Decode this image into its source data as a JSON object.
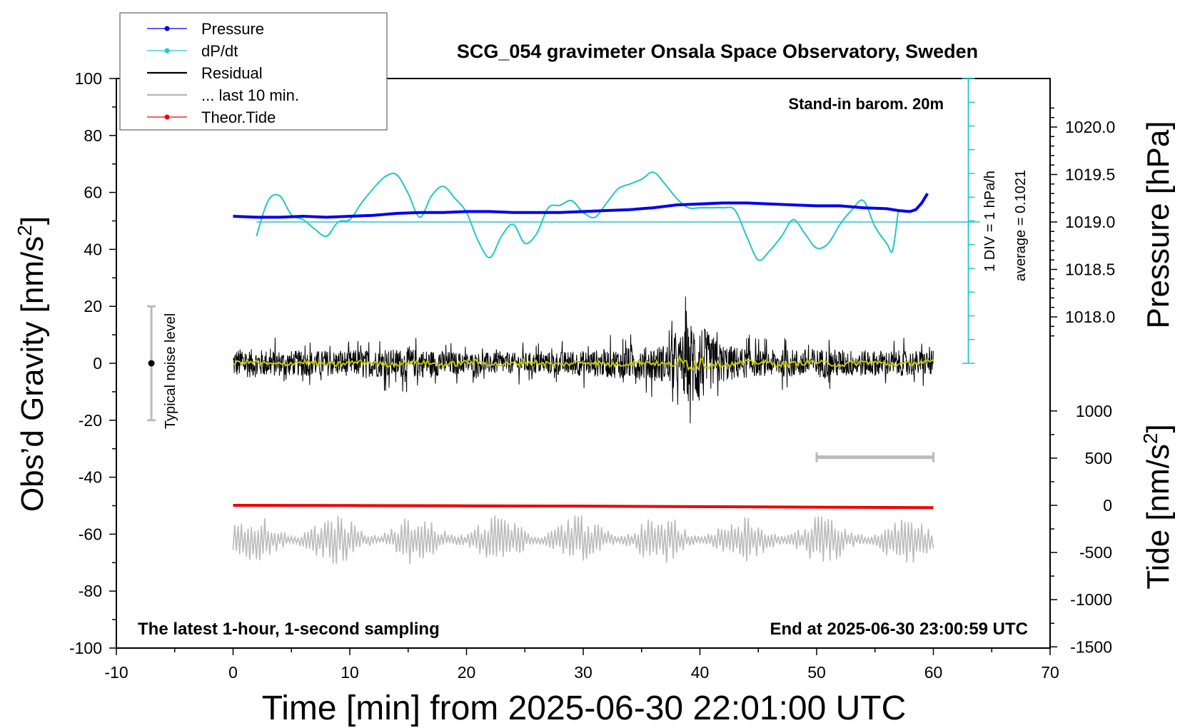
{
  "chart_data": {
    "type": "line",
    "title": "SCG_054 gravimeter Onsala Space Observatory, Sweden",
    "xlabel": "Time [min] from 2025-06-30 22:01:00 UTC",
    "ylabel_left_text": "Obs’d Gravity [nm/s",
    "ylabel_left_sup": "2",
    "ylabel_left_close": "]",
    "ylabel_right_pressure": "Pressure [hPa]",
    "ylabel_right_tide_text": "Tide [nm/s",
    "ylabel_right_tide_sup": "2",
    "ylabel_right_tide_close": "]",
    "xlim": [
      -10,
      70
    ],
    "ylim": [
      -100,
      100
    ],
    "x_ticks": [
      "-10",
      "0",
      "10",
      "20",
      "30",
      "40",
      "50",
      "60",
      "70"
    ],
    "y_ticks": [
      "100",
      "80",
      "60",
      "40",
      "20",
      "0",
      "-20",
      "-40",
      "-60",
      "-80",
      "-100"
    ],
    "pressure_ticks": [
      "1020.0",
      "1019.5",
      "1019.0",
      "1018.5",
      "1018.0"
    ],
    "pressure_tick_values": [
      1020.0,
      1019.5,
      1019.0,
      1018.5,
      1018.0
    ],
    "tide_ticks": [
      "1000",
      "500",
      "0",
      "-500",
      "-1000",
      "-1500"
    ],
    "tide_tick_values": [
      1000,
      500,
      0,
      -500,
      -1000,
      -1500
    ],
    "legend": [
      {
        "label": "Pressure",
        "color": "#0000ee"
      },
      {
        "label": "dP/dt",
        "color": "#20c8c8"
      },
      {
        "label": "Residual",
        "color": "#000000"
      },
      {
        "label": "... last 10 min.",
        "color": "#bbbbbb"
      },
      {
        "label": "Theor.Tide",
        "color": "#ee0000"
      }
    ],
    "annotations": {
      "stand_in": "Stand-in barom. 20m",
      "div_label": "1 DIV = 1 hPa/h",
      "average_label": "average = 0.1021",
      "noise_label": "Typical noise level",
      "bottom_left": "The latest 1-hour, 1-second sampling",
      "bottom_right": "End at 2025-06-30 23:00:59 UTC"
    },
    "noise_bar": {
      "x": -7,
      "center": 0,
      "range": [
        -20,
        20
      ]
    },
    "last10_bar": {
      "x_range": [
        50,
        60
      ],
      "y": -33
    },
    "series": [
      {
        "name": "Pressure",
        "axis": "pressure_hPa",
        "color": "#0000ee",
        "x": [
          0,
          2,
          4,
          6,
          8,
          10,
          12,
          14,
          16,
          18,
          20,
          22,
          24,
          26,
          28,
          30,
          32,
          34,
          36,
          38,
          40,
          42,
          44,
          46,
          48,
          50,
          52,
          54,
          56,
          57,
          58,
          58.5,
          59,
          59.5
        ],
        "values": [
          1019.06,
          1019.05,
          1019.05,
          1019.06,
          1019.05,
          1019.06,
          1019.07,
          1019.09,
          1019.1,
          1019.1,
          1019.11,
          1019.11,
          1019.1,
          1019.1,
          1019.1,
          1019.11,
          1019.12,
          1019.13,
          1019.15,
          1019.18,
          1019.19,
          1019.2,
          1019.2,
          1019.19,
          1019.18,
          1019.17,
          1019.17,
          1019.15,
          1019.14,
          1019.12,
          1019.11,
          1019.13,
          1019.2,
          1019.3
        ]
      },
      {
        "name": "dP/dt",
        "axis": "rate_hPa_per_h",
        "color": "#20c8c8",
        "baseline_value": 0.1021,
        "x": [
          2,
          3,
          4,
          5,
          6,
          7,
          8,
          9,
          10,
          11,
          12,
          13,
          14,
          15,
          16,
          17,
          18,
          19,
          20,
          21,
          22,
          23,
          24,
          25,
          26,
          27,
          28,
          29,
          30,
          31,
          32,
          33,
          34,
          35,
          36,
          37,
          38,
          39,
          40,
          41,
          42,
          43,
          44,
          45,
          46,
          47,
          48,
          49,
          50,
          51,
          52,
          53,
          54,
          55,
          56,
          56.5,
          57
        ],
        "values": [
          -0.6,
          0.9,
          1.1,
          0.3,
          0.1,
          -0.3,
          -0.6,
          0.0,
          0.1,
          0.8,
          1.4,
          1.9,
          2.0,
          1.2,
          0.2,
          1.1,
          1.5,
          1.0,
          0.4,
          -0.8,
          -1.5,
          -0.6,
          -0.1,
          -0.9,
          -0.5,
          0.6,
          0.7,
          0.9,
          0.4,
          0.2,
          0.8,
          1.4,
          1.6,
          1.8,
          2.1,
          1.6,
          1.0,
          0.6,
          0.6,
          0.6,
          0.6,
          0.5,
          -0.6,
          -1.6,
          -1.2,
          -0.6,
          0.1,
          -0.5,
          -1.1,
          -0.9,
          -0.1,
          0.5,
          0.9,
          -0.2,
          -0.9,
          -1.2,
          0.5
        ]
      },
      {
        "name": "Residual",
        "axis": "gravity_nm_s2",
        "color": "#000000",
        "x_range": [
          0,
          60
        ],
        "y_range": [
          -23,
          24
        ],
        "envelope_x": [
          0,
          5,
          10,
          15,
          20,
          25,
          30,
          33,
          36,
          37,
          38,
          39,
          39.5,
          40,
          40.5,
          41,
          42,
          43,
          45,
          50,
          55,
          60
        ],
        "envelope_amp": [
          7,
          6,
          6,
          7,
          5,
          5,
          6,
          7,
          8,
          9,
          11,
          18,
          22,
          20,
          16,
          12,
          9,
          8,
          6,
          7,
          6,
          6
        ]
      },
      {
        "name": "Residual smoothed",
        "axis": "gravity_nm_s2",
        "color": "#c8c800",
        "x_range": [
          0,
          60
        ],
        "y_range": [
          -3,
          3
        ]
      },
      {
        "name": "Theor.Tide",
        "axis": "tide_nm_s2",
        "color": "#ee0000",
        "x": [
          0,
          10,
          20,
          30,
          40,
          50,
          60
        ],
        "values": [
          0,
          -2,
          -5,
          -8,
          -14,
          -20,
          -25
        ]
      },
      {
        "name": "... last 10 min.",
        "axis": "gravity_nm_s2",
        "color": "#bbbbbb",
        "x_range": [
          0,
          60
        ],
        "y_range": [
          -72,
          -51
        ],
        "center": -62
      }
    ]
  }
}
